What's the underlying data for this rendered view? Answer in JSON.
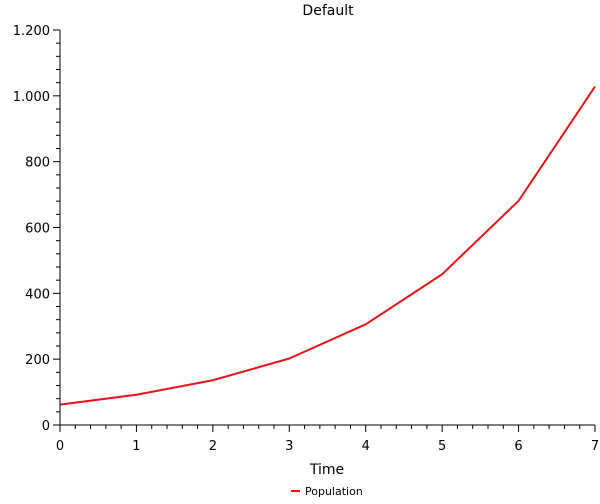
{
  "chart_data": {
    "type": "line",
    "title": "Default",
    "xlabel": "Time",
    "ylabel": "",
    "xlim": [
      0,
      7
    ],
    "ylim": [
      0,
      1200
    ],
    "x_ticks": [
      0,
      1,
      2,
      3,
      4,
      5,
      6,
      7
    ],
    "x_tick_labels": [
      "0",
      "1",
      "2",
      "3",
      "4",
      "5",
      "6",
      "7"
    ],
    "y_ticks": [
      0,
      200,
      400,
      600,
      800,
      1000,
      1200
    ],
    "y_tick_labels": [
      "0",
      "200",
      "400",
      "600",
      "800",
      "1.000",
      "1.200"
    ],
    "grid": false,
    "legend_position": "bottom-center",
    "series": [
      {
        "name": "Population",
        "color": "#e8141b",
        "x": [
          0,
          1,
          2,
          3,
          4,
          5,
          6,
          7
        ],
        "y": [
          62,
          92,
          136,
          202,
          306,
          458,
          681,
          1028
        ]
      }
    ]
  }
}
